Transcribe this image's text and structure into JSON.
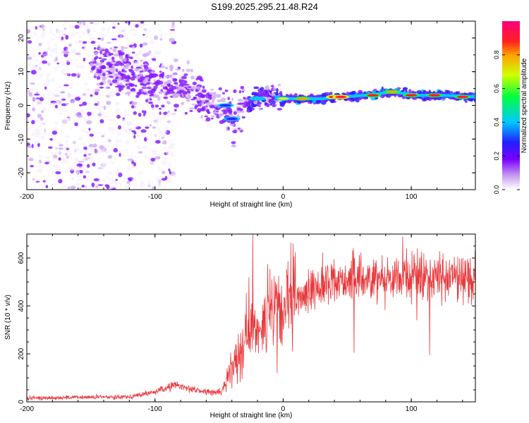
{
  "title": "S199.2025.295.21.48.R24",
  "chart_data": [
    {
      "type": "heatmap",
      "name": "spectrogram",
      "xlabel": "Height of straight line (km)",
      "ylabel": "Frequency (Hz)",
      "xlim": [
        -200,
        150
      ],
      "ylim": [
        -25,
        25
      ],
      "xticks": [
        -200,
        -100,
        0,
        100
      ],
      "yticks": [
        -20,
        -10,
        0,
        10,
        20
      ],
      "colorbar": {
        "label": "Normalized spectral amplitude",
        "range": [
          0,
          1
        ],
        "ticks": [
          "0.0",
          "0.2",
          "0.4",
          "0.6",
          "0.8"
        ],
        "colormap": "rainbow (white-violet-blue-cyan-green-yellow-red-magenta)"
      },
      "ridge": [
        {
          "x": -140,
          "y": 12
        },
        {
          "x": -120,
          "y": 10
        },
        {
          "x": -100,
          "y": 7
        },
        {
          "x": -80,
          "y": 5
        },
        {
          "x": -60,
          "y": 1
        },
        {
          "x": -45,
          "y": -1
        },
        {
          "x": -40,
          "y": -4
        },
        {
          "x": -30,
          "y": 0
        },
        {
          "x": -20,
          "y": 2
        },
        {
          "x": -10,
          "y": 3
        },
        {
          "x": 0,
          "y": 2
        },
        {
          "x": 15,
          "y": 2
        },
        {
          "x": 30,
          "y": 2
        },
        {
          "x": 45,
          "y": 2.5
        },
        {
          "x": 65,
          "y": 3
        },
        {
          "x": 85,
          "y": 4
        },
        {
          "x": 105,
          "y": 3
        },
        {
          "x": 125,
          "y": 3
        },
        {
          "x": 150,
          "y": 2.5
        }
      ],
      "hotspots": [
        {
          "x": -45,
          "y": 0,
          "amp": 0.4
        },
        {
          "x": -40,
          "y": -4,
          "amp": 0.3
        },
        {
          "x": -20,
          "y": 2,
          "amp": 0.45
        },
        {
          "x": 0,
          "y": 2,
          "amp": 0.8
        },
        {
          "x": 15,
          "y": 2,
          "amp": 0.85
        },
        {
          "x": 40,
          "y": 2.5,
          "amp": 0.95
        },
        {
          "x": 45,
          "y": 2.5,
          "amp": 0.95
        },
        {
          "x": 70,
          "y": 3,
          "amp": 0.9
        },
        {
          "x": 85,
          "y": 4,
          "amp": 0.85
        },
        {
          "x": 100,
          "y": 3,
          "amp": 0.9
        },
        {
          "x": 118,
          "y": 3,
          "amp": 0.9
        },
        {
          "x": 140,
          "y": 2.5,
          "amp": 0.9
        }
      ]
    },
    {
      "type": "line",
      "name": "snr",
      "xlabel": "Height of straight line (km)",
      "ylabel": "SNR (10 * v/v)",
      "xlim": [
        -200,
        150
      ],
      "ylim": [
        0,
        700
      ],
      "xticks": [
        -200,
        -100,
        0,
        100
      ],
      "yticks": [
        0,
        200,
        400,
        600
      ],
      "color": "#e8383b",
      "x": [
        -200,
        -170,
        -140,
        -120,
        -105,
        -95,
        -85,
        -75,
        -65,
        -55,
        -48,
        -42,
        -36,
        -30,
        -24,
        -18,
        -10,
        0,
        10,
        20,
        30,
        40,
        60,
        80,
        100,
        120,
        150
      ],
      "y": [
        15,
        18,
        20,
        22,
        35,
        50,
        70,
        60,
        45,
        40,
        40,
        120,
        200,
        260,
        310,
        330,
        360,
        380,
        420,
        460,
        490,
        505,
        515,
        520,
        520,
        520,
        520
      ],
      "spikes": [
        {
          "x": -24,
          "y": 700
        },
        {
          "x": -27,
          "y": 520
        },
        {
          "x": 55,
          "y": 205
        },
        {
          "x": 93,
          "y": 690
        },
        {
          "x": 96,
          "y": 640
        },
        {
          "x": 104,
          "y": 340
        },
        {
          "x": 106,
          "y": 600
        },
        {
          "x": 114,
          "y": 195
        },
        {
          "x": -5,
          "y": 120
        }
      ]
    }
  ]
}
